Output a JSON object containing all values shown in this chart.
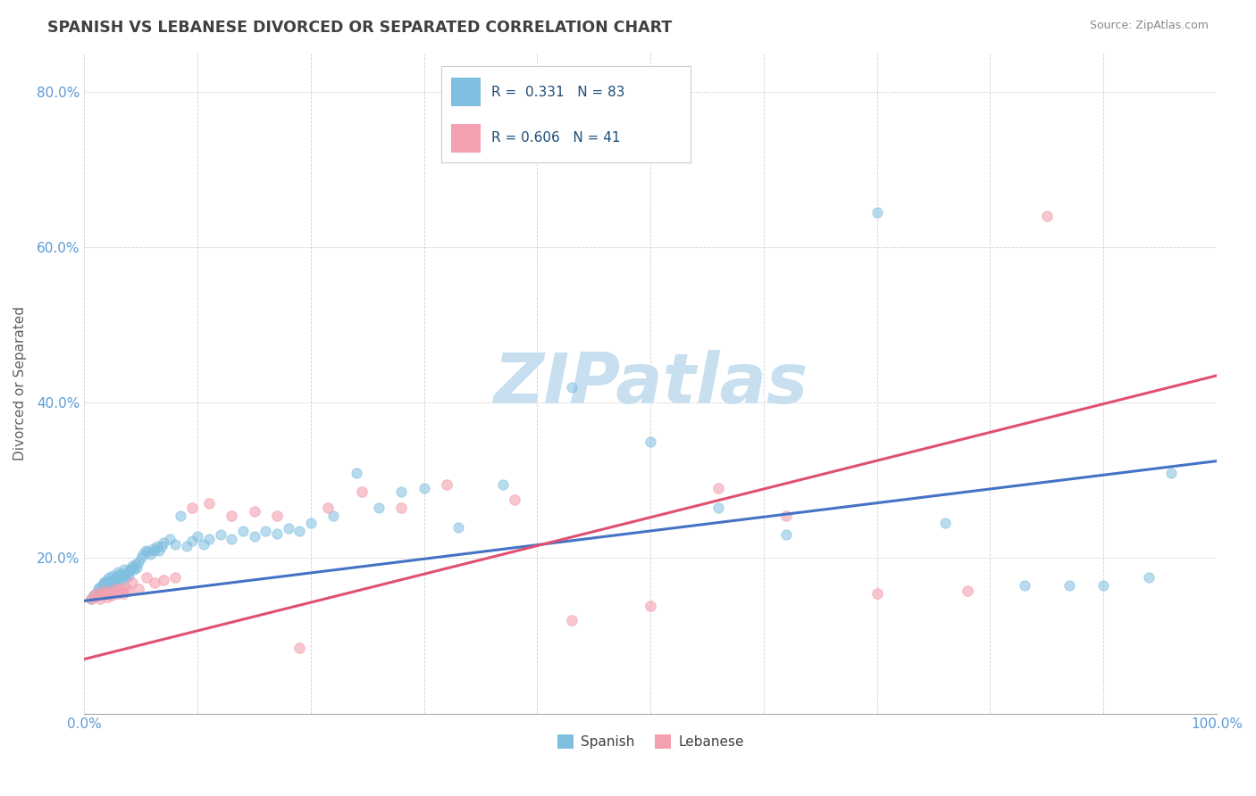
{
  "title": "SPANISH VS LEBANESE DIVORCED OR SEPARATED CORRELATION CHART",
  "source": "Source: ZipAtlas.com",
  "ylabel": "Divorced or Separated",
  "xlabel": "",
  "xlim": [
    0,
    1.0
  ],
  "ylim": [
    0,
    0.85
  ],
  "xticks": [
    0.0,
    0.1,
    0.2,
    0.3,
    0.4,
    0.5,
    0.6,
    0.7,
    0.8,
    0.9,
    1.0
  ],
  "yticks": [
    0.0,
    0.2,
    0.4,
    0.6,
    0.8
  ],
  "xtick_labels": [
    "0.0%",
    "",
    "",
    "",
    "",
    "",
    "",
    "",
    "",
    "",
    "100.0%"
  ],
  "ytick_labels": [
    "",
    "20.0%",
    "40.0%",
    "60.0%",
    "80.0%"
  ],
  "spanish_R": 0.331,
  "spanish_N": 83,
  "lebanese_R": 0.606,
  "lebanese_N": 41,
  "spanish_color": "#7fbfdf",
  "lebanese_color": "#f4a0b0",
  "spanish_line_color": "#4472c4",
  "lebanese_line_color": "#e05070",
  "title_color": "#404040",
  "axis_label_color": "#5b9bd5",
  "watermark_color": "#c8dff0",
  "legend_text_color": "#1f4e79",
  "spanish_line_x0": 0.0,
  "spanish_line_y0": 0.145,
  "spanish_line_x1": 1.0,
  "spanish_line_y1": 0.325,
  "lebanese_line_x0": 0.0,
  "lebanese_line_y0": 0.07,
  "lebanese_line_x1": 1.0,
  "lebanese_line_y1": 0.435,
  "spanish_x": [
    0.006,
    0.008,
    0.01,
    0.012,
    0.013,
    0.015,
    0.016,
    0.017,
    0.018,
    0.019,
    0.02,
    0.021,
    0.022,
    0.023,
    0.024,
    0.025,
    0.026,
    0.027,
    0.028,
    0.029,
    0.03,
    0.031,
    0.032,
    0.033,
    0.034,
    0.035,
    0.036,
    0.037,
    0.038,
    0.039,
    0.04,
    0.042,
    0.043,
    0.044,
    0.045,
    0.046,
    0.048,
    0.05,
    0.052,
    0.054,
    0.056,
    0.058,
    0.06,
    0.062,
    0.064,
    0.066,
    0.068,
    0.07,
    0.075,
    0.08,
    0.085,
    0.09,
    0.095,
    0.1,
    0.105,
    0.11,
    0.12,
    0.13,
    0.14,
    0.15,
    0.16,
    0.17,
    0.18,
    0.19,
    0.2,
    0.22,
    0.24,
    0.26,
    0.28,
    0.3,
    0.33,
    0.37,
    0.43,
    0.5,
    0.56,
    0.62,
    0.7,
    0.76,
    0.83,
    0.87,
    0.9,
    0.94,
    0.96
  ],
  "spanish_y": [
    0.148,
    0.152,
    0.155,
    0.16,
    0.162,
    0.155,
    0.165,
    0.168,
    0.17,
    0.165,
    0.172,
    0.168,
    0.175,
    0.17,
    0.165,
    0.178,
    0.172,
    0.168,
    0.175,
    0.17,
    0.182,
    0.178,
    0.18,
    0.175,
    0.172,
    0.185,
    0.18,
    0.175,
    0.182,
    0.178,
    0.185,
    0.19,
    0.188,
    0.185,
    0.192,
    0.188,
    0.195,
    0.2,
    0.205,
    0.21,
    0.208,
    0.205,
    0.212,
    0.21,
    0.215,
    0.21,
    0.215,
    0.22,
    0.225,
    0.218,
    0.255,
    0.215,
    0.222,
    0.228,
    0.218,
    0.225,
    0.23,
    0.225,
    0.235,
    0.228,
    0.235,
    0.232,
    0.238,
    0.235,
    0.245,
    0.255,
    0.31,
    0.265,
    0.285,
    0.29,
    0.24,
    0.295,
    0.42,
    0.35,
    0.265,
    0.23,
    0.645,
    0.245,
    0.165,
    0.165,
    0.165,
    0.175,
    0.31
  ],
  "lebanese_x": [
    0.006,
    0.008,
    0.01,
    0.012,
    0.014,
    0.016,
    0.018,
    0.02,
    0.022,
    0.024,
    0.026,
    0.028,
    0.03,
    0.032,
    0.034,
    0.036,
    0.038,
    0.042,
    0.048,
    0.055,
    0.062,
    0.07,
    0.08,
    0.095,
    0.11,
    0.13,
    0.15,
    0.17,
    0.19,
    0.215,
    0.245,
    0.28,
    0.32,
    0.38,
    0.43,
    0.5,
    0.56,
    0.62,
    0.7,
    0.78,
    0.85
  ],
  "lebanese_y": [
    0.148,
    0.152,
    0.15,
    0.155,
    0.148,
    0.155,
    0.158,
    0.15,
    0.155,
    0.152,
    0.158,
    0.16,
    0.155,
    0.16,
    0.155,
    0.162,
    0.158,
    0.168,
    0.16,
    0.175,
    0.168,
    0.172,
    0.175,
    0.265,
    0.27,
    0.255,
    0.26,
    0.255,
    0.085,
    0.265,
    0.285,
    0.265,
    0.295,
    0.275,
    0.12,
    0.138,
    0.29,
    0.255,
    0.155,
    0.158,
    0.64
  ]
}
